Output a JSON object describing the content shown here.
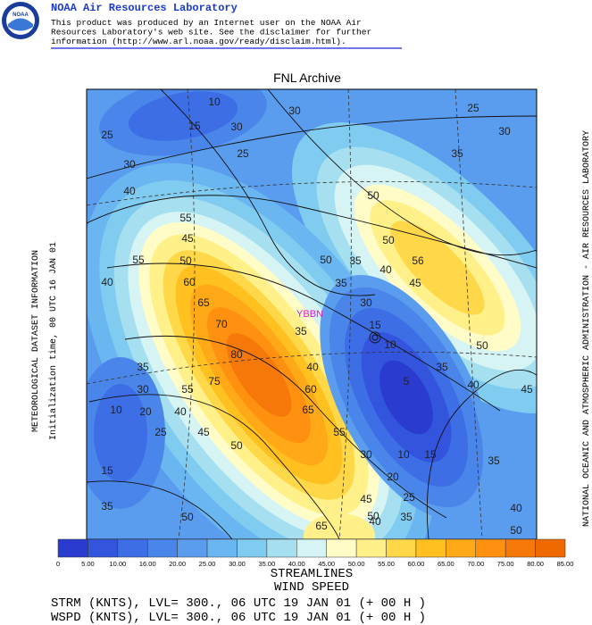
{
  "header": {
    "title": "NOAA Air Resources Laboratory",
    "logo": "NOAA",
    "lines": [
      "This product was produced by an Internet user on the NOAA Air",
      "Resources Laboratory's web site.  See the disclaimer for further",
      "information (http://www.arl.noaa.gov/ready/disclaim.html)."
    ]
  },
  "map": {
    "title": "FNL Archive",
    "left_lines": [
      "METEOROLOGICAL DATASET INFORMATION",
      "Initialization time, 00 UTC 16 JAN 01"
    ],
    "right_line": "NATIONAL OCEANIC AND ATMOSPHERIC ADMINISTRATION - AIR RESOURCES LABORATORY",
    "station": "YBBN",
    "contour_labels": [
      "10",
      "30",
      "25",
      "15",
      "30",
      "30",
      "25",
      "25",
      "35",
      "30",
      "40",
      "50",
      "55",
      "45",
      "50",
      "55",
      "50",
      "50",
      "35",
      "40",
      "56",
      "40",
      "60",
      "35",
      "45",
      "65",
      "30",
      "70",
      "15",
      "35",
      "10",
      "50",
      "80",
      "40",
      "35",
      "35",
      "75",
      "5",
      "40",
      "30",
      "60",
      "55",
      "45",
      "10",
      "20",
      "40",
      "65",
      "25",
      "45",
      "55",
      "50",
      "15",
      "30",
      "10",
      "15",
      "20",
      "35",
      "45",
      "25",
      "40",
      "40",
      "35",
      "50",
      "50",
      "50",
      "35",
      "65"
    ]
  },
  "legend": {
    "labels": [
      "0",
      "5.00",
      "10.00",
      "16.00",
      "20.00",
      "25.00",
      "30.00",
      "35.00",
      "40.00",
      "45.00",
      "50.00",
      "55.00",
      "60.00",
      "65.00",
      "70.00",
      "75.00",
      "80.00",
      "85.00"
    ],
    "colors": [
      "#2a3ccf",
      "#3355dd",
      "#3d6ee6",
      "#4a86ea",
      "#5a9cee",
      "#6ab6f0",
      "#80ccf0",
      "#a6e0f0",
      "#d6f4f4",
      "#fffcc8",
      "#fff08a",
      "#ffd84a",
      "#ffc020",
      "#ffa818",
      "#ff9010",
      "#f57808",
      "#ee6a00"
    ]
  },
  "footer": {
    "lines": [
      "STREAMLINES",
      "WIND SPEED"
    ],
    "params": [
      "STRM (KNTS),  LVL= 300., 06 UTC 19 JAN 01 (+ 00 H )",
      "WSPD (KNTS),  LVL= 300., 06 UTC 19 JAN 01 (+ 00 H )"
    ]
  }
}
